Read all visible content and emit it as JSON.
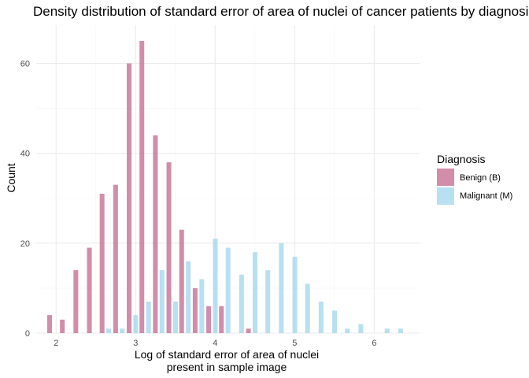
{
  "chart_data": {
    "type": "bar",
    "title": "Density distribution of standard error of area of nuclei of cancer patients by diagnosis",
    "xlabel_lines": [
      "Log of standard error of area of nuclei",
      "present in sample image"
    ],
    "ylabel": "Count",
    "xlim": [
      1.75,
      6.58
    ],
    "ylim": [
      0,
      68.5
    ],
    "x_ticks": [
      2,
      3,
      4,
      5,
      6
    ],
    "y_ticks": [
      0,
      20,
      40,
      60
    ],
    "bin_width": 0.1667,
    "grid": true,
    "legend": {
      "title": "Diagnosis",
      "position": "right",
      "entries": [
        {
          "label": "Benign (B)",
          "color": "#c2678d"
        },
        {
          "label": "Malignant (M)",
          "color": "#9fd6ec"
        }
      ]
    },
    "bins": [
      1.96,
      2.12,
      2.29,
      2.46,
      2.62,
      2.79,
      2.96,
      3.12,
      3.29,
      3.46,
      3.62,
      3.79,
      3.96,
      4.12,
      4.29,
      4.46,
      4.62,
      4.79,
      4.96,
      5.12,
      5.29,
      5.46,
      5.62,
      5.79,
      5.96,
      6.12,
      6.29
    ],
    "series": [
      {
        "name": "Benign (B)",
        "color": "#c2678d",
        "values": [
          4,
          3,
          14,
          19,
          31,
          33,
          60,
          65,
          44,
          38,
          23,
          10,
          6,
          6,
          0,
          1,
          0,
          0,
          0,
          0,
          0,
          0,
          0,
          0,
          0,
          0,
          0
        ]
      },
      {
        "name": "Malignant (M)",
        "color": "#9fd6ec",
        "values": [
          0,
          0,
          0,
          0,
          1,
          1,
          4,
          7,
          14,
          7,
          16,
          12,
          21,
          19,
          13,
          18,
          14,
          20,
          17,
          11,
          7,
          5,
          1,
          2,
          0,
          1,
          1
        ]
      }
    ]
  }
}
